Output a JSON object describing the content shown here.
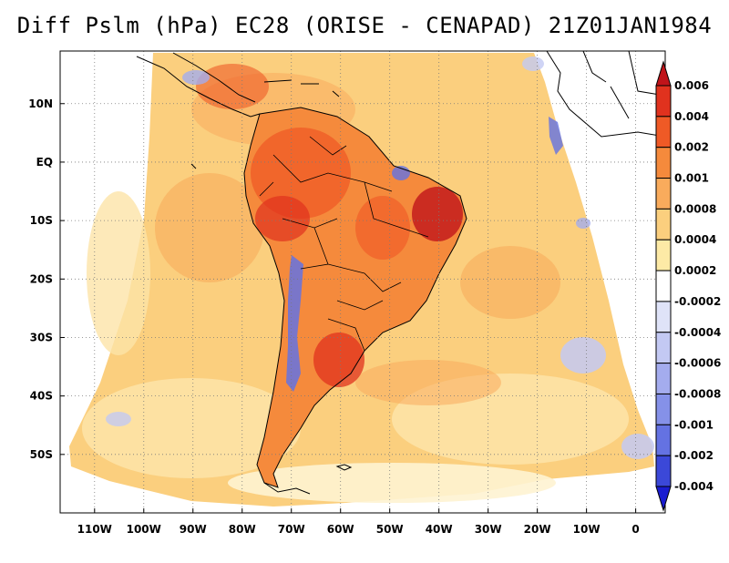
{
  "title": "Diff Pslm (hPa) EC28 (ORISE - CENAPAD) 21Z01JAN1984",
  "map": {
    "lon_range": [
      -117,
      6
    ],
    "lat_range": [
      -60,
      19
    ],
    "lon_ticks": [
      {
        "value": -110,
        "label": "110W"
      },
      {
        "value": -100,
        "label": "100W"
      },
      {
        "value": -90,
        "label": "90W"
      },
      {
        "value": -80,
        "label": "80W"
      },
      {
        "value": -70,
        "label": "70W"
      },
      {
        "value": -60,
        "label": "60W"
      },
      {
        "value": -50,
        "label": "50W"
      },
      {
        "value": -40,
        "label": "40W"
      },
      {
        "value": -30,
        "label": "30W"
      },
      {
        "value": -20,
        "label": "20W"
      },
      {
        "value": -10,
        "label": "10W"
      },
      {
        "value": 0,
        "label": "0"
      }
    ],
    "lat_ticks": [
      {
        "value": 10,
        "label": "10N"
      },
      {
        "value": 0,
        "label": "EQ"
      },
      {
        "value": -10,
        "label": "10S"
      },
      {
        "value": -20,
        "label": "20S"
      },
      {
        "value": -30,
        "label": "30S"
      },
      {
        "value": -40,
        "label": "40S"
      },
      {
        "value": -50,
        "label": "50S"
      }
    ],
    "grid": true
  },
  "colorbar": {
    "labels": [
      "0.006",
      "0.004",
      "0.002",
      "0.001",
      "0.0008",
      "0.0004",
      "0.0002",
      "-0.0002",
      "-0.0004",
      "-0.0006",
      "-0.0008",
      "-0.001",
      "-0.002",
      "-0.004"
    ],
    "colors": [
      "#c0141a",
      "#e0321e",
      "#ef5a26",
      "#f58a3c",
      "#f9ab5c",
      "#fbcf7e",
      "#fdeaa6",
      "#ffffff",
      "#dfe3f8",
      "#c3c9f3",
      "#a4acee",
      "#8591e8",
      "#6472e2",
      "#3b48d8",
      "#1a1cd0"
    ]
  }
}
